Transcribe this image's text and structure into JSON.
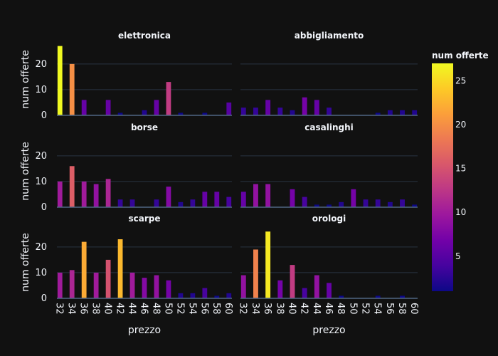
{
  "chart_data": {
    "type": "bar",
    "xlabel": "prezzo",
    "ylabel": "num offerte",
    "x_tick_labels": [
      "32",
      "34",
      "36",
      "38",
      "40",
      "42",
      "44",
      "46",
      "48",
      "50",
      "52",
      "54",
      "56",
      "58",
      "60"
    ],
    "categories": [
      32,
      33,
      34,
      35,
      36,
      37,
      38,
      39,
      40,
      41,
      42,
      43,
      44,
      45,
      46,
      47,
      48,
      49,
      50,
      51,
      52,
      53,
      54,
      55,
      56,
      57,
      58,
      59,
      60
    ],
    "ylim": [
      0,
      28
    ],
    "y_ticks": [
      0,
      10,
      20
    ],
    "grid": true,
    "colorbar": {
      "title": "num offerte",
      "range": [
        1,
        27
      ],
      "ticks": [
        5,
        10,
        15,
        20,
        25
      ],
      "colors": [
        "#0d0887",
        "#46039f",
        "#7201a8",
        "#9c179e",
        "#bd3786",
        "#d8576b",
        "#ed7953",
        "#fb9f3a",
        "#fdca26",
        "#f0f921"
      ]
    },
    "facets": [
      {
        "title": "elettronica",
        "values": [
          27,
          0,
          20,
          0,
          6,
          0,
          0,
          0,
          6,
          0,
          1,
          0,
          0,
          0,
          2,
          0,
          6,
          0,
          13,
          0,
          1,
          0,
          0,
          0,
          1,
          0,
          0,
          0,
          5
        ]
      },
      {
        "title": "abbigliamento",
        "values": [
          3,
          0,
          3,
          0,
          6,
          0,
          3,
          0,
          2,
          0,
          7,
          0,
          6,
          0,
          3,
          0,
          0,
          0,
          0,
          0,
          0,
          0,
          1,
          0,
          2,
          0,
          2,
          0,
          2
        ]
      },
      {
        "title": "borse",
        "values": [
          10,
          0,
          16,
          0,
          10,
          0,
          9,
          0,
          11,
          0,
          3,
          0,
          3,
          0,
          0,
          0,
          3,
          0,
          8,
          0,
          2,
          0,
          3,
          0,
          6,
          0,
          6,
          0,
          4
        ]
      },
      {
        "title": "casalinghi",
        "values": [
          6,
          0,
          9,
          0,
          9,
          0,
          0,
          0,
          7,
          0,
          4,
          0,
          1,
          0,
          1,
          0,
          2,
          0,
          7,
          0,
          3,
          0,
          3,
          0,
          2,
          0,
          3,
          0,
          1
        ]
      },
      {
        "title": "scarpe",
        "values": [
          10,
          0,
          11,
          0,
          22,
          0,
          10,
          0,
          15,
          0,
          23,
          0,
          10,
          0,
          8,
          0,
          9,
          0,
          7,
          0,
          2,
          0,
          2,
          0,
          4,
          0,
          1,
          0,
          2
        ]
      },
      {
        "title": "orologi",
        "values": [
          9,
          0,
          19,
          0,
          26,
          0,
          7,
          0,
          13,
          0,
          4,
          0,
          9,
          0,
          6,
          0,
          1,
          0,
          0,
          0,
          0,
          0,
          1,
          0,
          0,
          0,
          1,
          0,
          0
        ]
      }
    ]
  }
}
